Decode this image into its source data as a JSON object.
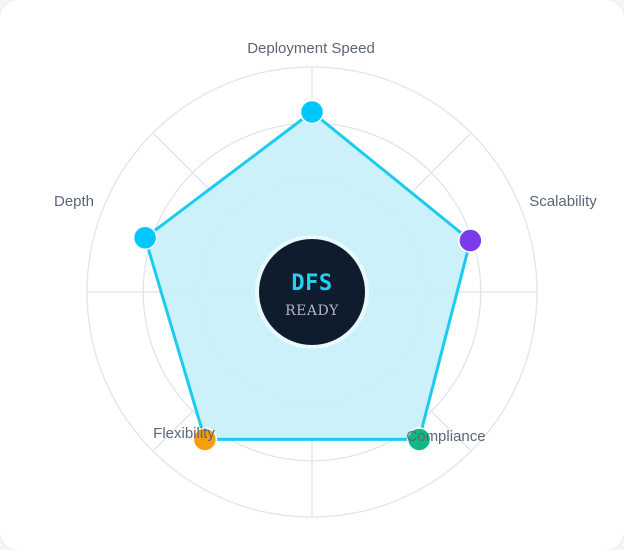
{
  "center": {
    "title": "DFS",
    "subtitle": "READY"
  },
  "axes": [
    {
      "label": "Deployment Speed",
      "value": 0.8,
      "color": "#00c8ff"
    },
    {
      "label": "Scalability",
      "value": 0.74,
      "color": "#7c3aed"
    },
    {
      "label": "Compliance",
      "value": 0.81,
      "color": "#10b981"
    },
    {
      "label": "Flexibility",
      "value": 0.81,
      "color": "#f59e0b"
    },
    {
      "label": "Depth",
      "value": 0.78,
      "color": "#00c8ff"
    }
  ],
  "colors": {
    "grid": "#dfe5ec",
    "polygon_fill": "#c8f0fb",
    "polygon_stroke": "#1ccbf0",
    "center_bg": "#0f1c2e",
    "center_ring": "#e7f8fd"
  }
}
